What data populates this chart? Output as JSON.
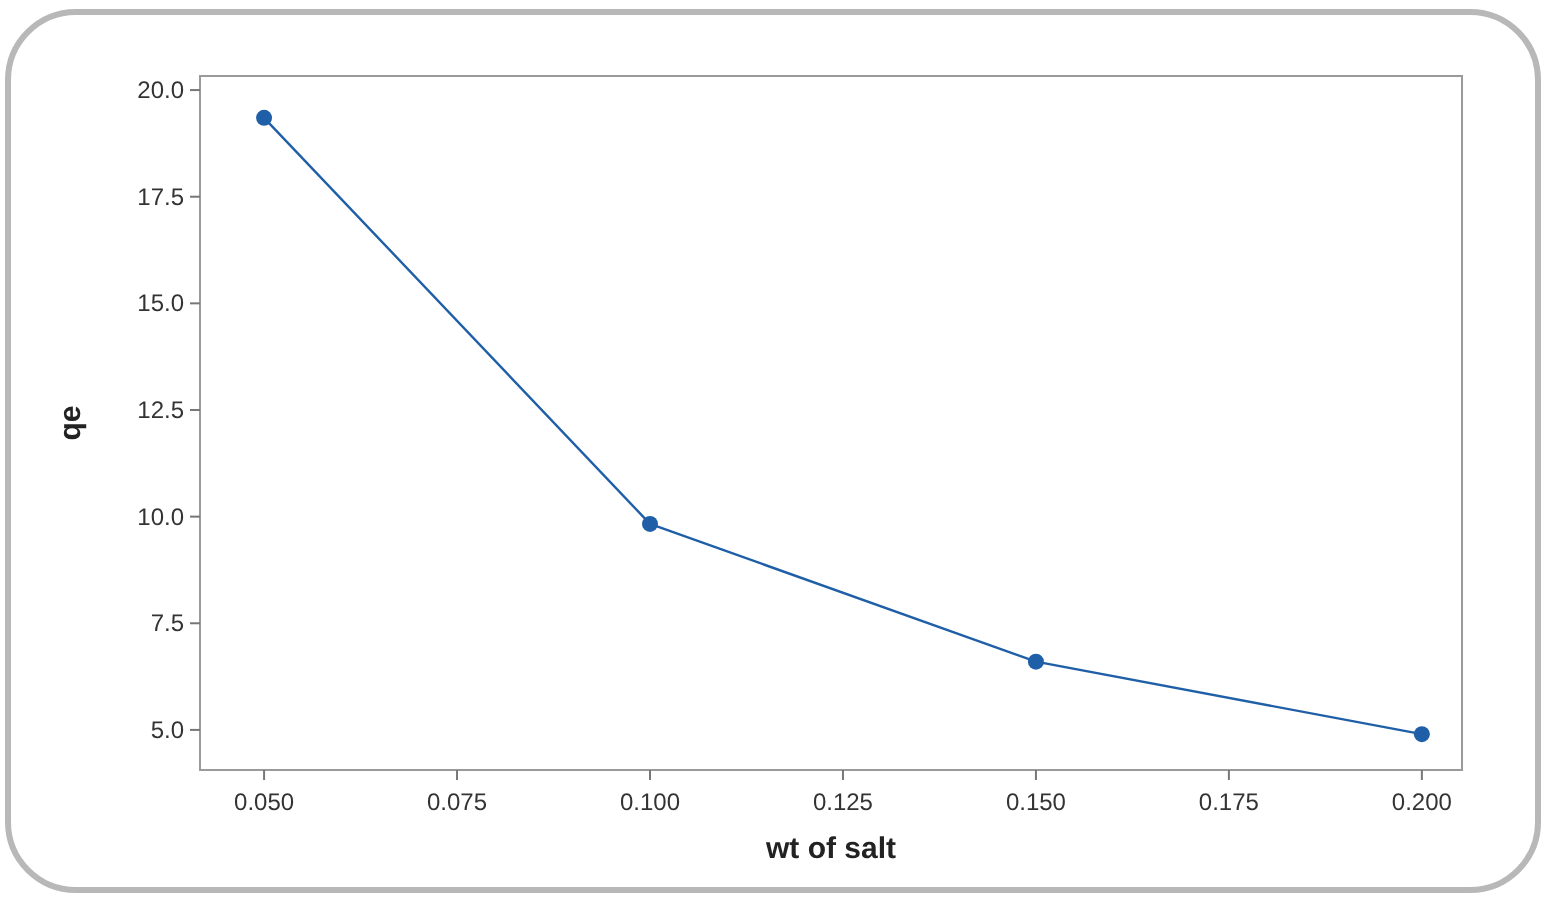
{
  "chart_data": {
    "type": "line",
    "xlabel": "wt of salt",
    "ylabel": "qe",
    "x": [
      0.05,
      0.1,
      0.15,
      0.2
    ],
    "series": [
      {
        "color": "#1f5fa8",
        "values": [
          19.35,
          9.83,
          6.6,
          4.9
        ]
      }
    ],
    "xlim": [
      0.0417,
      0.2052
    ],
    "ylim": [
      4.06,
      20.33
    ],
    "xticks": [
      {
        "value": 0.05,
        "label": "0.050"
      },
      {
        "value": 0.075,
        "label": "0.075"
      },
      {
        "value": 0.1,
        "label": "0.100"
      },
      {
        "value": 0.125,
        "label": "0.125"
      },
      {
        "value": 0.15,
        "label": "0.150"
      },
      {
        "value": 0.175,
        "label": "0.175"
      },
      {
        "value": 0.2,
        "label": "0.200"
      }
    ],
    "yticks": [
      {
        "value": 5,
        "label": "5.0"
      },
      {
        "value": 7.5,
        "label": "7.5"
      },
      {
        "value": 10,
        "label": "10.0"
      },
      {
        "value": 12.5,
        "label": "12.5"
      },
      {
        "value": 15,
        "label": "15.0"
      },
      {
        "value": 17.5,
        "label": "17.5"
      },
      {
        "value": 20,
        "label": "20.0"
      }
    ],
    "marker": "circle",
    "line_style": "solid"
  }
}
